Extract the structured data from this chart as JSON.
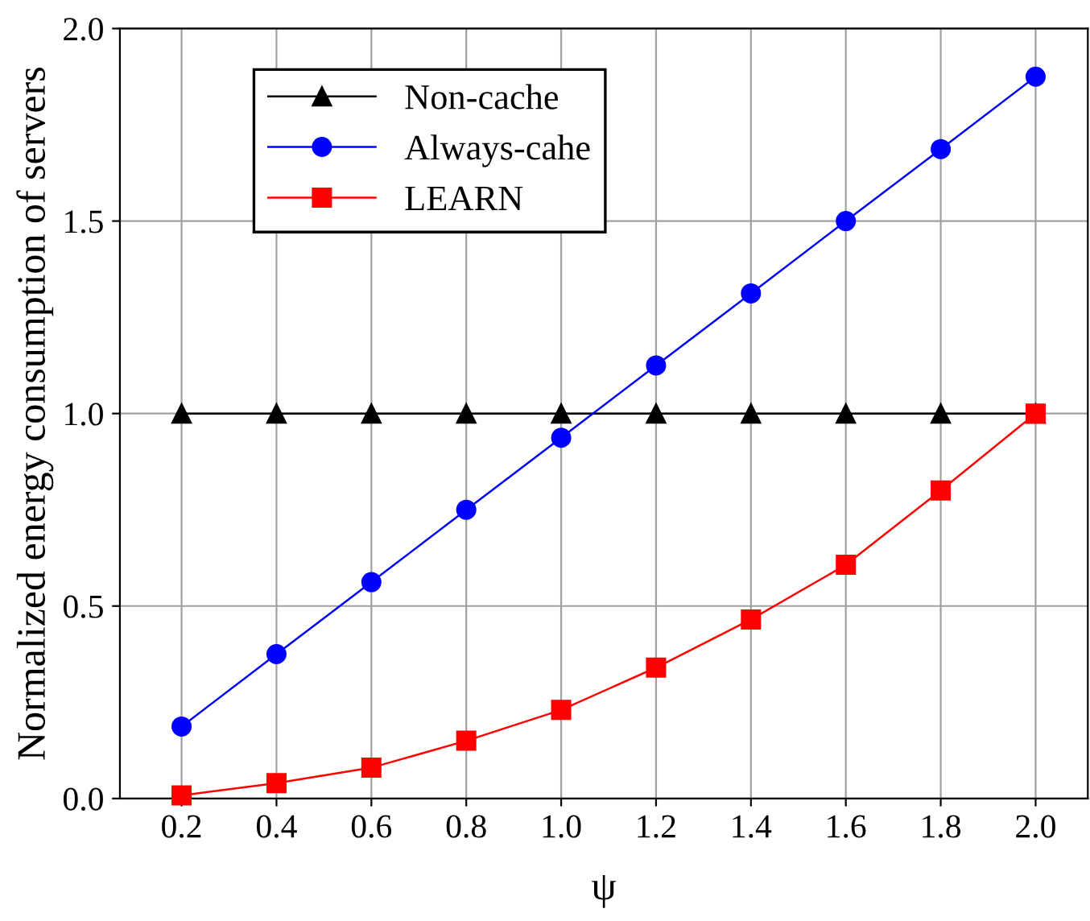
{
  "chart_data": {
    "type": "line",
    "xlabel": "ψ",
    "ylabel": "Normalized energy consumption of servers",
    "x": [
      0.2,
      0.4,
      0.6,
      0.8,
      1.0,
      1.2,
      1.4,
      1.6,
      1.8,
      2.0
    ],
    "series": [
      {
        "name": "Non-cache",
        "color": "#000000",
        "marker": "triangle",
        "values": [
          1,
          1,
          1,
          1,
          1,
          1,
          1,
          1,
          1,
          1
        ]
      },
      {
        "name": "Always-cahe",
        "color": "#0000ff",
        "marker": "circle",
        "values": [
          0.187,
          0.375,
          0.562,
          0.75,
          0.937,
          1.125,
          1.312,
          1.5,
          1.687,
          1.875
        ]
      },
      {
        "name": "LEARN",
        "color": "#ff0000",
        "marker": "square",
        "values": [
          0.008,
          0.04,
          0.08,
          0.15,
          0.23,
          0.34,
          0.465,
          0.607,
          0.8,
          1.0
        ]
      }
    ],
    "xlim": [
      0.07,
      2.11
    ],
    "ylim": [
      0,
      2.0
    ],
    "xticks": [
      {
        "value": 0.2,
        "label": "0.2"
      },
      {
        "value": 0.4,
        "label": "0.4"
      },
      {
        "value": 0.6,
        "label": "0.6"
      },
      {
        "value": 0.8,
        "label": "0.8"
      },
      {
        "value": 1.0,
        "label": "1.0"
      },
      {
        "value": 1.2,
        "label": "1.2"
      },
      {
        "value": 1.4,
        "label": "1.4"
      },
      {
        "value": 1.6,
        "label": "1.6"
      },
      {
        "value": 1.8,
        "label": "1.8"
      },
      {
        "value": 2.0,
        "label": "2.0"
      }
    ],
    "yticks": [
      {
        "value": 0,
        "label": "0.0"
      },
      {
        "value": 0.5,
        "label": "0.5"
      },
      {
        "value": 1.0,
        "label": "1.0"
      },
      {
        "value": 1.5,
        "label": "1.5"
      },
      {
        "value": 2.0,
        "label": "2.0"
      }
    ],
    "grid": true,
    "legend": "top left",
    "line_style": "solid"
  }
}
